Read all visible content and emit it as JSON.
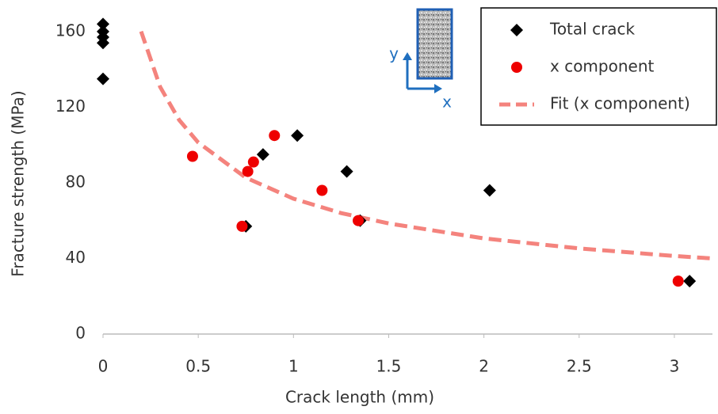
{
  "chart_data": {
    "type": "scatter",
    "xlabel": "Crack length (mm)",
    "ylabel": "Fracture strength (MPa)",
    "xlim": [
      0,
      3.2
    ],
    "ylim": [
      0,
      170
    ],
    "xticks": [
      0,
      0.5,
      1,
      1.5,
      2,
      2.5,
      3
    ],
    "yticks": [
      0,
      40,
      80,
      120,
      160
    ],
    "grid": false,
    "legend": "upper right",
    "inset_labels": [
      "y",
      "x"
    ],
    "series": [
      {
        "name": "Total crack",
        "color": "#000000",
        "marker": "diamond",
        "x": [
          0,
          0,
          0,
          0,
          0,
          0.75,
          0.84,
          1.02,
          1.28,
          1.35,
          2.03,
          3.08
        ],
        "values": [
          164,
          160,
          157,
          154,
          135,
          57,
          95,
          105,
          86,
          60,
          76,
          28
        ]
      },
      {
        "name": "x component",
        "color": "#ee0000",
        "marker": "circle",
        "x": [
          0.47,
          0.73,
          0.76,
          0.79,
          0.9,
          1.15,
          1.34,
          3.02
        ],
        "values": [
          94,
          57,
          86,
          91,
          105,
          76,
          60,
          28
        ]
      },
      {
        "name": "Fit (x component)",
        "color": "#f4837d",
        "marker": "dashed-line",
        "x": [
          0.2,
          0.3,
          0.4,
          0.5,
          0.75,
          1,
          1.25,
          1.5,
          2,
          2.5,
          3,
          3.2
        ],
        "values": [
          160.1,
          130.7,
          113.2,
          101.3,
          82.7,
          71.6,
          64.0,
          58.5,
          50.6,
          45.3,
          41.3,
          40.0
        ]
      }
    ]
  }
}
